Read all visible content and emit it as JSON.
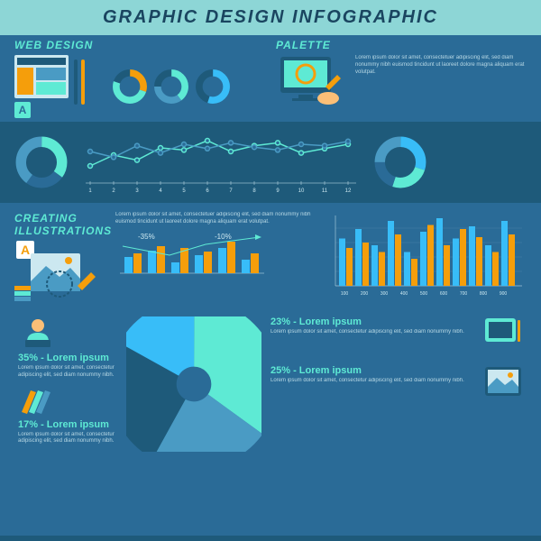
{
  "bg": "#2a6b97",
  "header_bg": "#8dd6d6",
  "header_color": "#1a4560",
  "title": "GRAPHIC DESIGN INFOGRAPHIC",
  "text_light": "#cce8f0",
  "accent_cyan": "#5eead4",
  "accent_orange": "#f59e0b",
  "accent_blue": "#38bdf8",
  "accent_dark": "#1e5a7a",
  "accent_mid": "#4a9bc4",
  "lorem": "Lorem ipsum dolor sit amet, consectetuer adipiscing elit, sed diam nonummy nibh euismod tincidunt ut laoreet dolore magna aliquam erat volutpat.",
  "lorem_sm": "Lorem ipsum dolor sit amet, consectetur adipiscing elit, sed diam nonummy nibh.",
  "web": {
    "title": "WEB DESIGN",
    "donuts": [
      {
        "seg": [
          {
            "c": "#f59e0b",
            "p": 30
          },
          {
            "c": "#5eead4",
            "p": 50
          },
          {
            "c": "#1e5a7a",
            "p": 20
          }
        ]
      },
      {
        "seg": [
          {
            "c": "#5eead4",
            "p": 40
          },
          {
            "c": "#4a9bc4",
            "p": 35
          },
          {
            "c": "#1e5a7a",
            "p": 25
          }
        ]
      },
      {
        "seg": [
          {
            "c": "#38bdf8",
            "p": 55
          },
          {
            "c": "#1e5a7a",
            "p": 45
          }
        ]
      }
    ]
  },
  "palette": {
    "title": "PALETTE"
  },
  "band": {
    "bg": "#1e5a7a",
    "donut_l": {
      "seg": [
        {
          "c": "#5eead4",
          "p": 35
        },
        {
          "c": "#2a6b97",
          "p": 25
        },
        {
          "c": "#4a9bc4",
          "p": 40
        }
      ]
    },
    "donut_r": {
      "seg": [
        {
          "c": "#38bdf8",
          "p": 30
        },
        {
          "c": "#5eead4",
          "p": 25
        },
        {
          "c": "#2a6b97",
          "p": 20
        },
        {
          "c": "#4a9bc4",
          "p": 25
        }
      ]
    },
    "xticks": [
      1,
      2,
      3,
      4,
      5,
      6,
      7,
      8,
      9,
      10,
      11,
      12
    ],
    "line1": {
      "c": "#5eead4",
      "y": [
        20,
        35,
        28,
        45,
        42,
        55,
        40,
        48,
        52,
        38,
        44,
        50
      ]
    },
    "line2": {
      "c": "#4a9bc4",
      "y": [
        40,
        32,
        48,
        38,
        50,
        44,
        52,
        46,
        42,
        50,
        48,
        54
      ]
    }
  },
  "creating": {
    "title": "CREATING ILLUSTRATIONS",
    "bars_sm": {
      "pct": [
        "-35%",
        "-10%"
      ],
      "vals": [
        [
          18,
          22
        ],
        [
          25,
          30
        ],
        [
          12,
          28
        ],
        [
          20,
          24
        ],
        [
          28,
          35
        ],
        [
          15,
          22
        ]
      ]
    },
    "bars_lg": {
      "xticks": [
        100,
        200,
        300,
        400,
        500,
        600,
        700,
        800,
        900
      ],
      "vals": [
        [
          35,
          28
        ],
        [
          42,
          32
        ],
        [
          30,
          25
        ],
        [
          48,
          38
        ],
        [
          25,
          20
        ],
        [
          40,
          45
        ],
        [
          50,
          30
        ],
        [
          35,
          42
        ],
        [
          44,
          36
        ],
        [
          30,
          25
        ],
        [
          48,
          38
        ]
      ]
    }
  },
  "pie": {
    "seg": [
      {
        "c": "#5eead4",
        "p": 35,
        "lbl": "35% - Lorem ipsum"
      },
      {
        "c": "#4a9bc4",
        "p": 23,
        "lbl": "23% - Lorem ipsum"
      },
      {
        "c": "#1e5a7a",
        "p": 25,
        "lbl": "25% - Lorem ipsum"
      },
      {
        "c": "#38bdf8",
        "p": 17,
        "lbl": "17% - Lorem ipsum"
      }
    ]
  }
}
